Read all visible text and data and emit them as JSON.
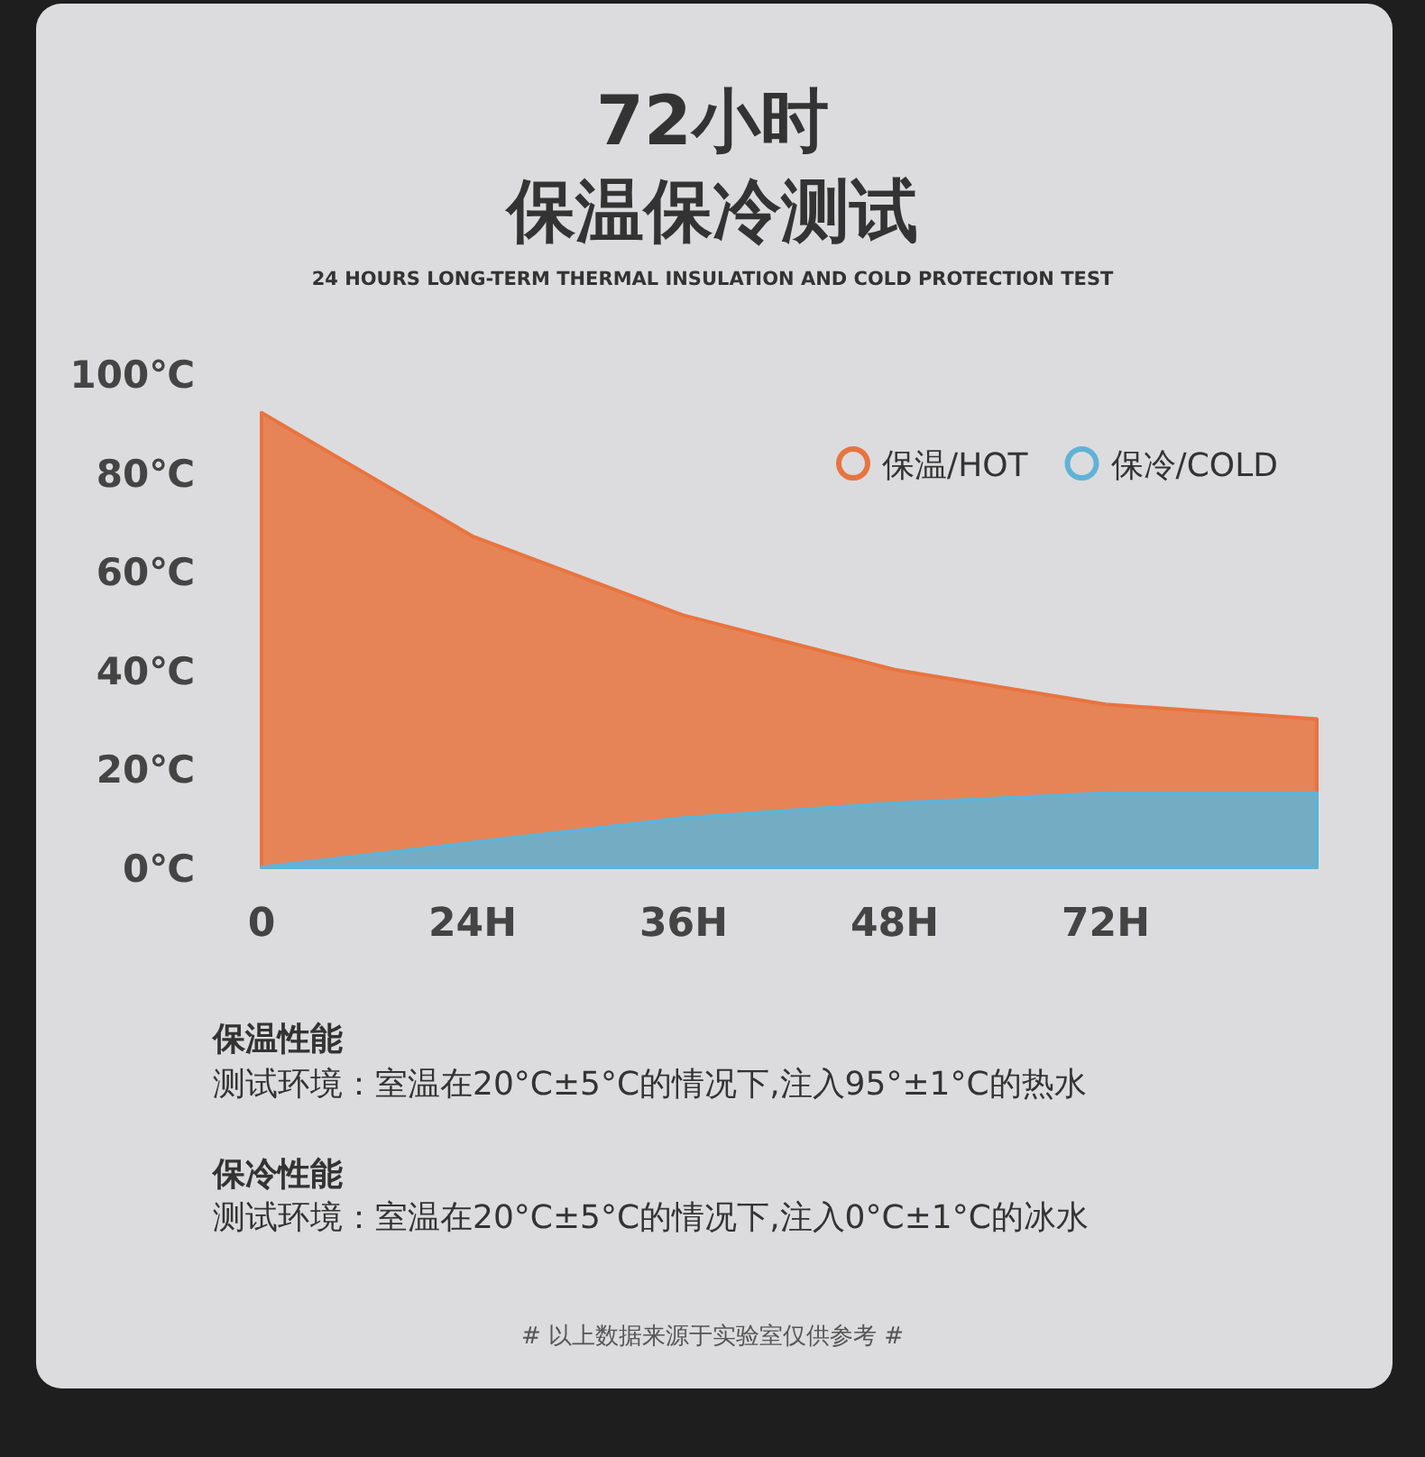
{
  "chart_data": {
    "type": "area",
    "title": "72小时保温保冷测试",
    "subtitle": "24 HOURS LONG-TERM THERMAL INSULATION AND COLD PROTECTION TEST",
    "categories": [
      "0",
      "24H",
      "36H",
      "48H",
      "72H",
      null
    ],
    "series": [
      {
        "name": "保温/HOT",
        "color": "#e8743f",
        "values": [
          92,
          67,
          51,
          40,
          33,
          30
        ]
      },
      {
        "name": "保冷/COLD",
        "color": "#5fb3d6",
        "values": [
          0,
          5,
          10,
          13,
          15,
          15
        ]
      }
    ],
    "ylim": [
      0,
      100
    ],
    "yticks": [
      {
        "value": 0,
        "label": "0℃"
      },
      {
        "value": 20,
        "label": "20℃"
      },
      {
        "value": 40,
        "label": "40℃"
      },
      {
        "value": 60,
        "label": "60℃"
      },
      {
        "value": 80,
        "label": "80℃"
      },
      {
        "value": 100,
        "label": "100℃"
      }
    ],
    "legend": "top right",
    "grid": false,
    "annotations": [
      "保温性能",
      "测试环境：室温在20°C±5°C的情况下,注入95°±1°C的热水",
      "保冷性能",
      "测试环境：室温在20°C±5°C的情况下,注入0°C±1°C的冰水",
      "# 以上数据来源于实验室仅供参考 #"
    ]
  }
}
